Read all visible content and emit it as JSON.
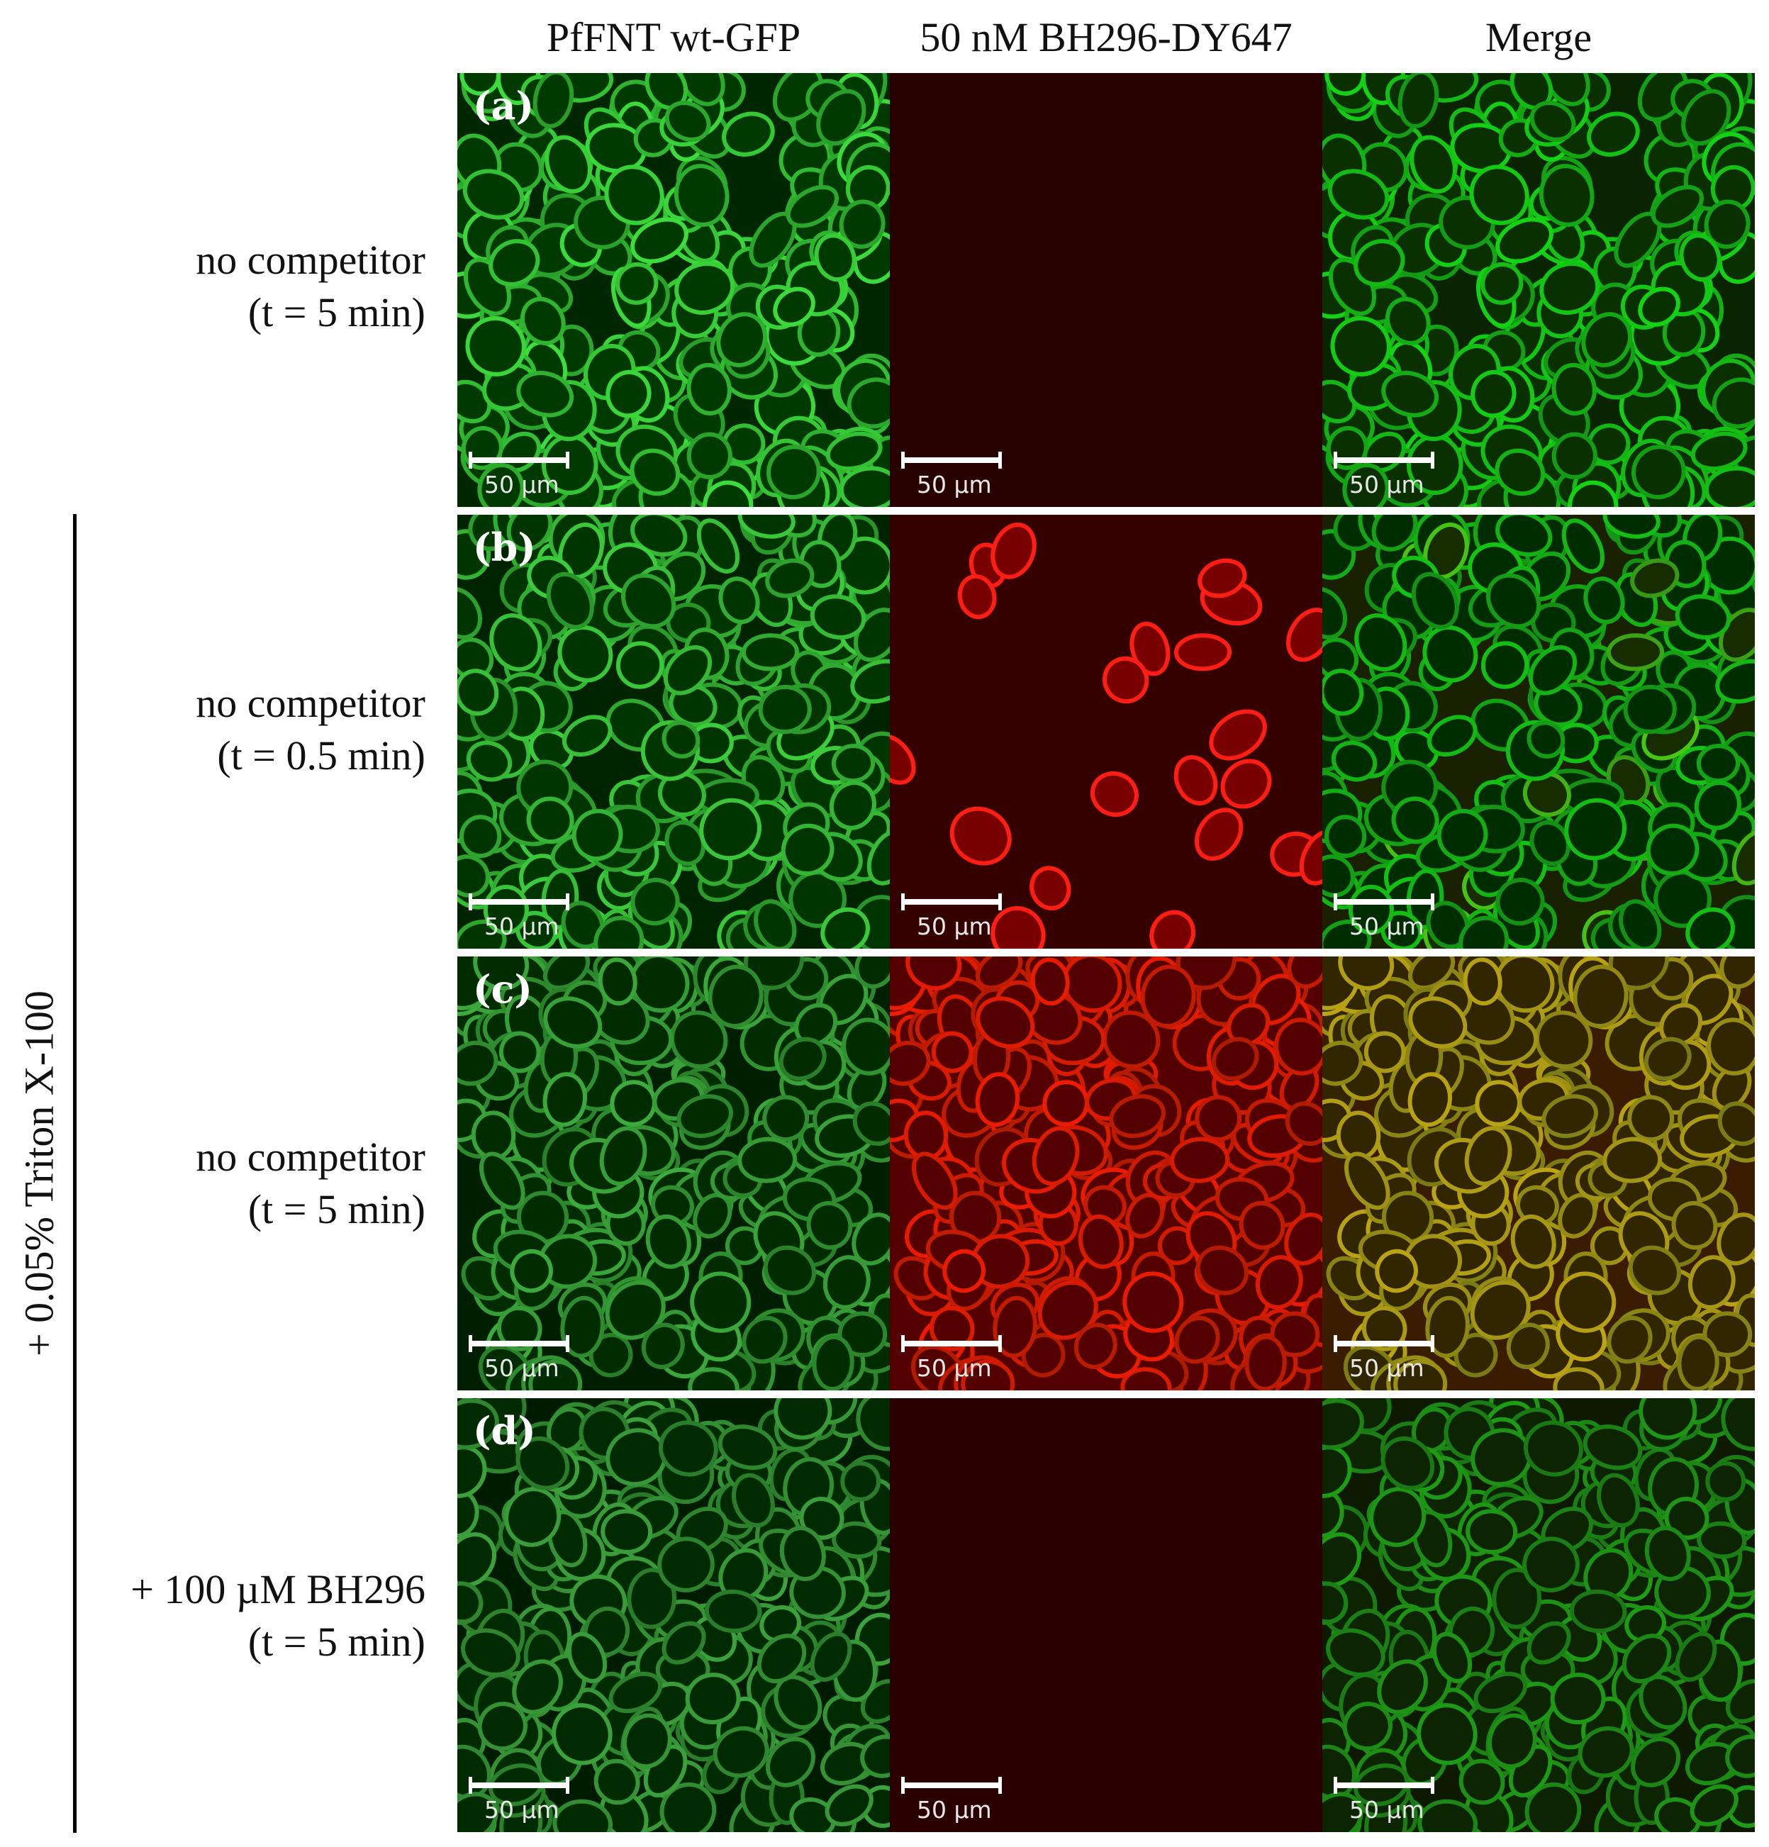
{
  "column_headers": [
    "PfFNT wt-GFP",
    "50 nM BH296-DY647",
    "Merge"
  ],
  "side_label": "+ 0.05% Triton X-100",
  "rows": [
    {
      "letter": "(a)",
      "label_line1": "no competitor",
      "label_line2": "(t = 5 min)",
      "scale": "50 µm"
    },
    {
      "letter": "(b)",
      "label_line1": "no competitor",
      "label_line2": "(t = 0.5 min)",
      "scale": "50 µm"
    },
    {
      "letter": "(c)",
      "label_line1": "no competitor",
      "label_line2": "(t = 5 min)",
      "scale": "50 µm"
    },
    {
      "letter": "(d)",
      "label_line1": "+ 100 µM BH296",
      "label_line2": "(t = 5 min)",
      "scale": "50 µm"
    }
  ],
  "colors": {
    "gfp": "#2ecc40",
    "dye": "#ff1a0a",
    "background": "#000000"
  },
  "channel_intensity": {
    "gfp": [
      0.95,
      0.85,
      0.65,
      0.6
    ],
    "red": [
      0.0,
      0.25,
      0.9,
      0.03
    ],
    "merge_red": [
      0.0,
      0.25,
      0.8,
      0.05
    ]
  }
}
